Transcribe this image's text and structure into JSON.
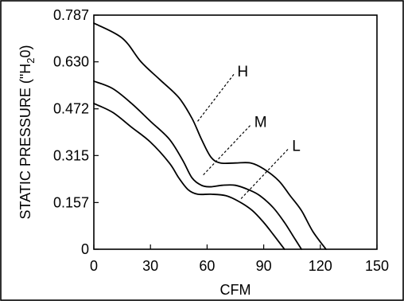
{
  "chart_data": {
    "type": "line",
    "xlabel": "CFM",
    "ylabel_parts": [
      "STATIC PRESSURE (\"H",
      "2",
      "0)"
    ],
    "xlim": [
      0,
      150
    ],
    "ylim": [
      0,
      0.787
    ],
    "xticks": [
      0,
      30,
      60,
      90,
      120,
      150
    ],
    "yticks": [
      0,
      0.157,
      0.315,
      0.472,
      0.63,
      0.787
    ],
    "ytick_labels": [
      "0",
      "0.157",
      "0.315",
      "0.472",
      "0.630",
      "0.787"
    ],
    "grid": false,
    "series": [
      {
        "name": "H",
        "x": [
          0,
          15,
          25,
          35,
          45,
          52,
          57,
          62,
          67,
          75,
          83,
          90,
          98,
          104,
          110,
          116,
          123
        ],
        "y": [
          0.76,
          0.71,
          0.63,
          0.57,
          0.51,
          0.44,
          0.37,
          0.31,
          0.29,
          0.29,
          0.29,
          0.27,
          0.23,
          0.18,
          0.13,
          0.06,
          0
        ]
      },
      {
        "name": "M",
        "x": [
          0,
          10,
          20,
          30,
          40,
          47,
          52,
          57,
          62,
          68,
          75,
          82,
          88,
          95,
          101,
          106,
          110
        ],
        "y": [
          0.565,
          0.54,
          0.49,
          0.43,
          0.37,
          0.3,
          0.24,
          0.215,
          0.21,
          0.215,
          0.215,
          0.2,
          0.18,
          0.14,
          0.09,
          0.04,
          0
        ]
      },
      {
        "name": "L",
        "x": [
          0,
          10,
          20,
          30,
          40,
          45,
          50,
          55,
          62,
          70,
          77,
          84,
          90,
          95,
          101
        ],
        "y": [
          0.49,
          0.46,
          0.41,
          0.36,
          0.29,
          0.24,
          0.2,
          0.185,
          0.185,
          0.18,
          0.16,
          0.13,
          0.09,
          0.05,
          0
        ]
      }
    ],
    "annotations": [
      {
        "label": "H",
        "series": "H",
        "point": [
          55,
          0.43
        ],
        "text_at": [
          76,
          0.6
        ]
      },
      {
        "label": "M",
        "series": "M",
        "point": [
          58,
          0.25
        ],
        "text_at": [
          85,
          0.43
        ]
      },
      {
        "label": "L",
        "series": "L",
        "point": [
          78,
          0.17
        ],
        "text_at": [
          105,
          0.35
        ]
      }
    ]
  }
}
